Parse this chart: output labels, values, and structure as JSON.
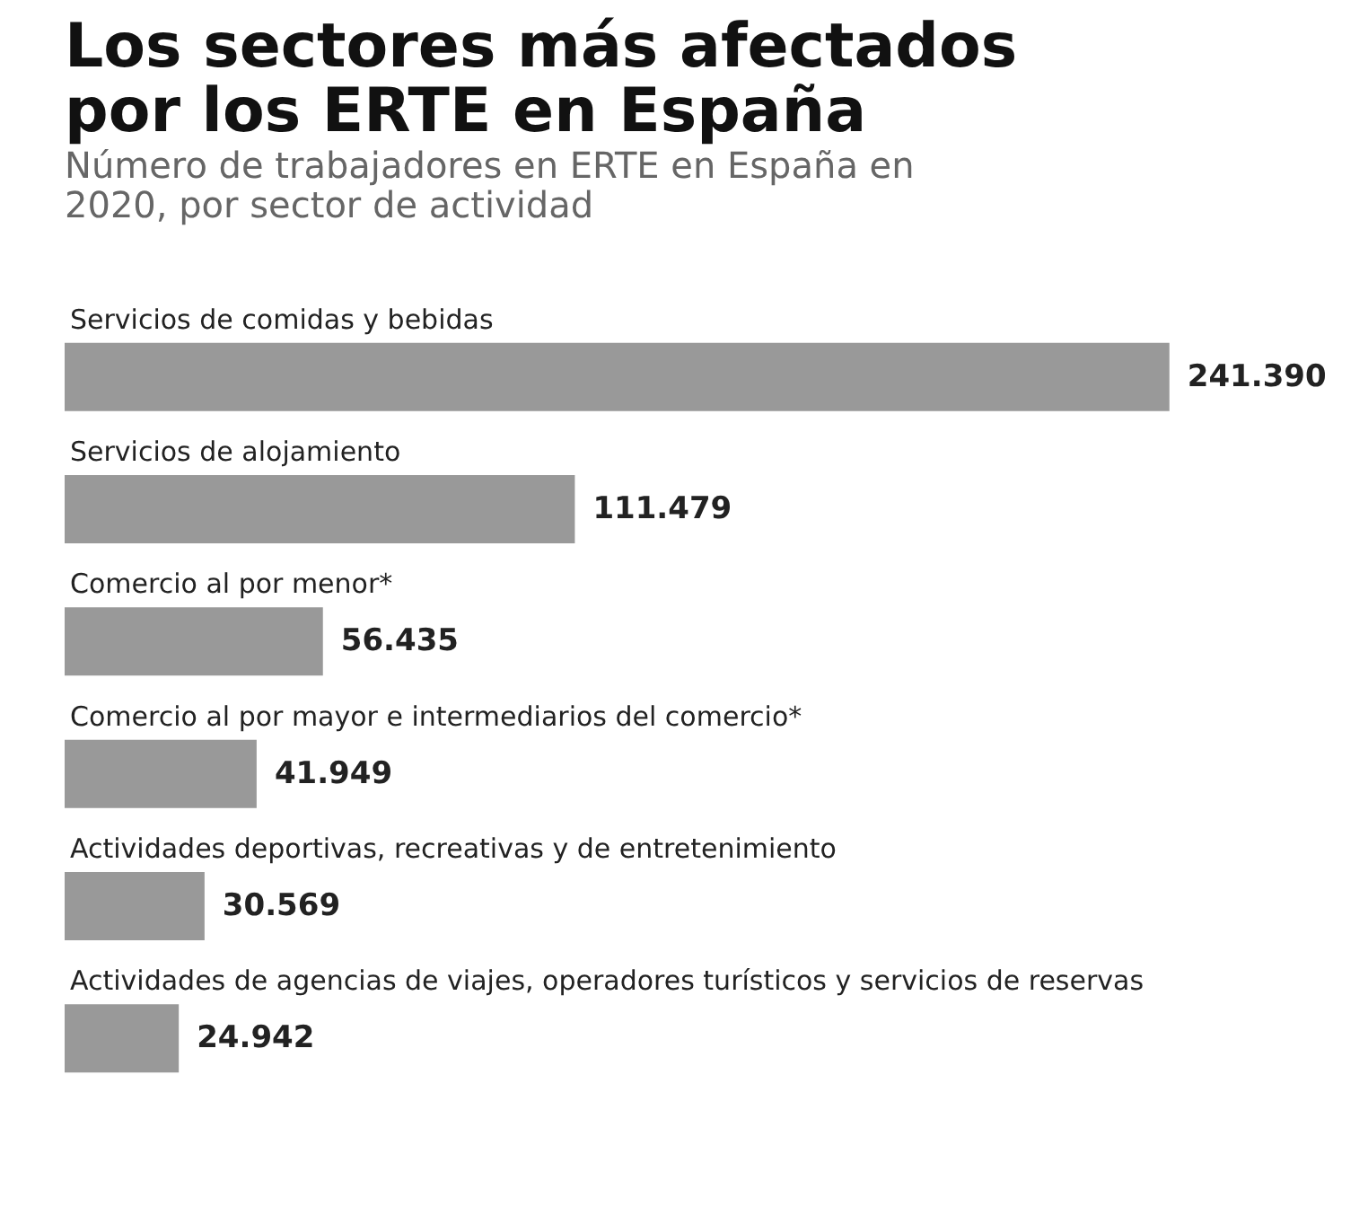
{
  "chart_data": {
    "type": "bar",
    "orientation": "horizontal",
    "title": "Los sectores más afectados por los ERTE en España",
    "subtitle": "Número de trabajadores en ERTE en España en 2020, por sector de actividad",
    "categories": [
      "Servicios de comidas y bebidas",
      "Servicios de alojamiento",
      "Comercio al por menor*",
      "Comercio al por mayor e intermediarios del comercio*",
      "Actividades deportivas, recreativas y de entretenimiento",
      "Actividades de agencias de viajes, operadores turísticos y servicios de reservas"
    ],
    "values": [
      241390,
      111479,
      56435,
      41949,
      30569,
      24942
    ],
    "value_labels": [
      "241.390",
      "111.479",
      "56.435",
      "41.949",
      "30.569",
      "24.942"
    ],
    "color": "#999999",
    "grid": false
  }
}
